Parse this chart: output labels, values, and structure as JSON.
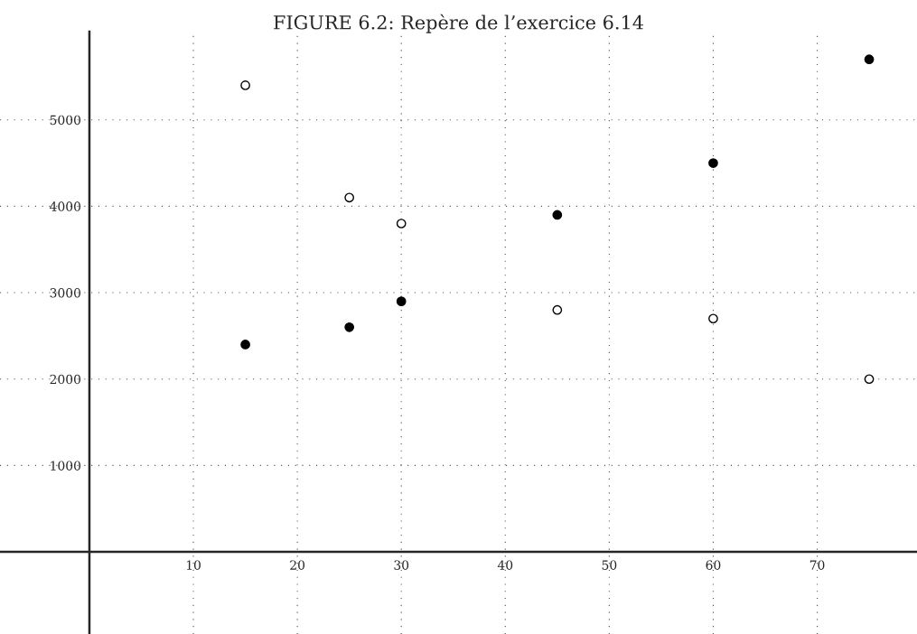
{
  "chart_data": {
    "type": "scatter",
    "title": "FIGURE 6.2: Repère de l’exercice 6.14",
    "x": [
      15,
      25,
      30,
      45,
      60,
      75
    ],
    "series": [
      {
        "color": "#000000",
        "values": [
          2400,
          2600,
          2900,
          3900,
          4500,
          5700
        ]
      },
      {
        "color": "#ffffff",
        "values": [
          5400,
          4100,
          3800,
          2800,
          2700,
          2000
        ]
      }
    ],
    "xlim": [
      -8.6,
      79.6
    ],
    "ylim": [
      -950,
      6020
    ],
    "xticks": [
      10,
      20,
      30,
      40,
      50,
      60,
      70
    ],
    "yticks": [
      1000,
      2000,
      3000,
      4000,
      5000
    ],
    "grid": true,
    "marker": "circle"
  }
}
